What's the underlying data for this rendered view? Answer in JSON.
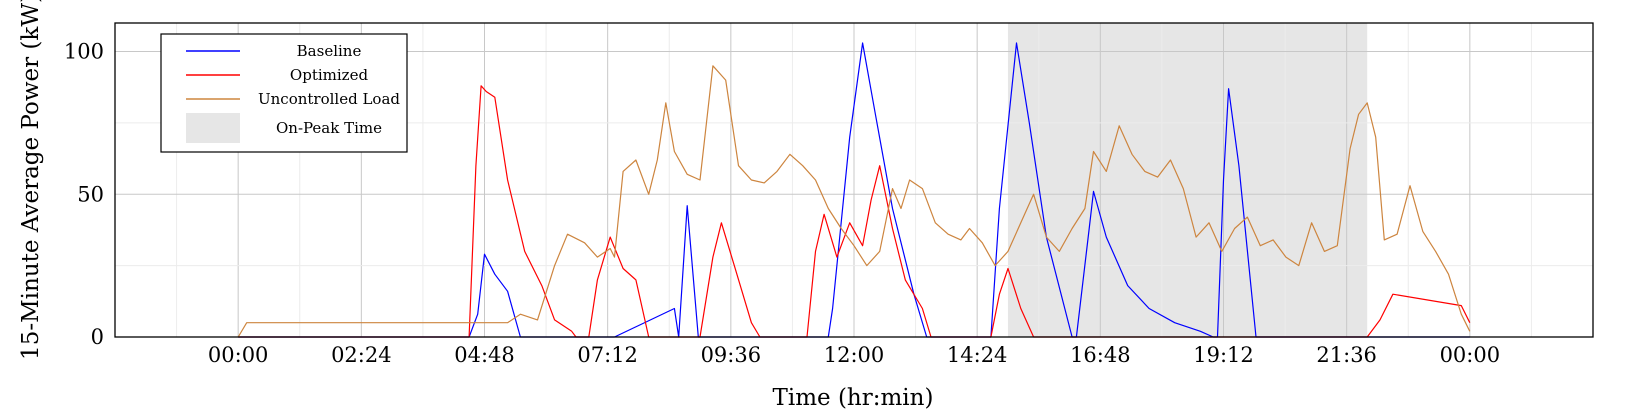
{
  "chart_data": {
    "type": "line",
    "xlabel": "Time (hr:min)",
    "ylabel": "15-Minute Average Power (kW)",
    "x_unit": "hh:mm",
    "xlim": [
      "21:36",
      "02:24"
    ],
    "ylim": [
      0,
      110
    ],
    "x_ticks": [
      "00:00",
      "02:24",
      "04:48",
      "07:12",
      "09:36",
      "12:00",
      "14:24",
      "16:48",
      "19:12",
      "21:36",
      "00:00"
    ],
    "y_ticks": [
      "0",
      "50",
      "100"
    ],
    "grid": true,
    "legend_position": "top-left",
    "on_peak_window": {
      "start": "15:00",
      "end": "22:00",
      "label": "On-Peak Time",
      "color": "#e6e6e6"
    },
    "series": [
      {
        "name": "Baseline",
        "color": "#0000ff",
        "points": [
          [
            "00:00",
            0
          ],
          [
            "04:30",
            0
          ],
          [
            "04:40",
            8
          ],
          [
            "04:48",
            29
          ],
          [
            "05:00",
            22
          ],
          [
            "05:15",
            16
          ],
          [
            "05:30",
            0
          ],
          [
            "07:20",
            0
          ],
          [
            "09:36",
            0
          ],
          [
            "09:00",
            0
          ],
          [
            "08:35",
            0
          ],
          [
            "08:30",
            10
          ],
          [
            "08:45",
            46
          ],
          [
            "08:58",
            0
          ],
          [
            "10:00",
            0
          ],
          [
            "11:30",
            0
          ],
          [
            "11:35",
            10
          ],
          [
            "11:55",
            70
          ],
          [
            "12:10",
            103
          ],
          [
            "12:25",
            78
          ],
          [
            "12:45",
            45
          ],
          [
            "13:10",
            15
          ],
          [
            "13:25",
            0
          ],
          [
            "14:40",
            0
          ],
          [
            "14:50",
            45
          ],
          [
            "15:10",
            103
          ],
          [
            "15:25",
            75
          ],
          [
            "15:45",
            35
          ],
          [
            "16:15",
            0
          ],
          [
            "16:20",
            0
          ],
          [
            "16:35",
            38
          ],
          [
            "16:40",
            51
          ],
          [
            "16:55",
            35
          ],
          [
            "17:20",
            18
          ],
          [
            "17:45",
            10
          ],
          [
            "18:15",
            5
          ],
          [
            "18:45",
            2
          ],
          [
            "19:00",
            0
          ],
          [
            "19:05",
            0
          ],
          [
            "19:12",
            55
          ],
          [
            "19:18",
            87
          ],
          [
            "19:30",
            60
          ],
          [
            "19:50",
            0
          ],
          [
            "24:00",
            0
          ]
        ]
      },
      {
        "name": "Optimized",
        "color": "#ff0000",
        "points": [
          [
            "00:00",
            0
          ],
          [
            "04:30",
            0
          ],
          [
            "04:38",
            60
          ],
          [
            "04:44",
            88
          ],
          [
            "04:50",
            86
          ],
          [
            "05:00",
            84
          ],
          [
            "05:15",
            55
          ],
          [
            "05:35",
            30
          ],
          [
            "05:55",
            18
          ],
          [
            "06:10",
            6
          ],
          [
            "06:30",
            2
          ],
          [
            "06:35",
            0
          ],
          [
            "06:50",
            0
          ],
          [
            "07:00",
            20
          ],
          [
            "07:15",
            35
          ],
          [
            "07:30",
            24
          ],
          [
            "07:45",
            20
          ],
          [
            "08:00",
            0
          ],
          [
            "09:00",
            0
          ],
          [
            "09:15",
            28
          ],
          [
            "09:25",
            40
          ],
          [
            "09:40",
            25
          ],
          [
            "10:00",
            5
          ],
          [
            "10:10",
            0
          ],
          [
            "11:05",
            0
          ],
          [
            "11:15",
            30
          ],
          [
            "11:25",
            43
          ],
          [
            "11:40",
            28
          ],
          [
            "11:55",
            40
          ],
          [
            "12:10",
            32
          ],
          [
            "12:20",
            48
          ],
          [
            "12:30",
            60
          ],
          [
            "12:45",
            38
          ],
          [
            "13:00",
            20
          ],
          [
            "13:20",
            10
          ],
          [
            "13:30",
            0
          ],
          [
            "14:40",
            0
          ],
          [
            "14:50",
            15
          ],
          [
            "15:00",
            24
          ],
          [
            "15:15",
            10
          ],
          [
            "15:30",
            0
          ],
          [
            "22:00",
            0
          ],
          [
            "22:15",
            6
          ],
          [
            "22:30",
            15
          ],
          [
            "23:50",
            11
          ],
          [
            "24:00",
            5
          ]
        ]
      },
      {
        "name": "Uncontrolled Load",
        "color": "#cd853f",
        "points": [
          [
            "00:00",
            0
          ],
          [
            "00:10",
            5
          ],
          [
            "02:00",
            5
          ],
          [
            "04:45",
            5
          ],
          [
            "05:15",
            5
          ],
          [
            "05:30",
            8
          ],
          [
            "05:50",
            6
          ],
          [
            "06:10",
            25
          ],
          [
            "06:25",
            36
          ],
          [
            "06:45",
            33
          ],
          [
            "07:00",
            28
          ],
          [
            "07:15",
            31
          ],
          [
            "07:20",
            28
          ],
          [
            "07:30",
            58
          ],
          [
            "07:45",
            62
          ],
          [
            "08:00",
            50
          ],
          [
            "08:10",
            62
          ],
          [
            "08:20",
            82
          ],
          [
            "08:30",
            65
          ],
          [
            "08:45",
            57
          ],
          [
            "09:00",
            55
          ],
          [
            "09:15",
            95
          ],
          [
            "09:30",
            90
          ],
          [
            "09:45",
            60
          ],
          [
            "10:00",
            55
          ],
          [
            "10:15",
            54
          ],
          [
            "10:30",
            58
          ],
          [
            "10:45",
            64
          ],
          [
            "11:00",
            60
          ],
          [
            "11:15",
            55
          ],
          [
            "11:30",
            45
          ],
          [
            "11:45",
            38
          ],
          [
            "12:00",
            32
          ],
          [
            "12:15",
            25
          ],
          [
            "12:30",
            30
          ],
          [
            "12:45",
            52
          ],
          [
            "12:55",
            45
          ],
          [
            "13:05",
            55
          ],
          [
            "13:20",
            52
          ],
          [
            "13:35",
            40
          ],
          [
            "13:50",
            36
          ],
          [
            "14:05",
            34
          ],
          [
            "14:15",
            38
          ],
          [
            "14:30",
            33
          ],
          [
            "14:45",
            25
          ],
          [
            "15:00",
            30
          ],
          [
            "15:15",
            40
          ],
          [
            "15:30",
            50
          ],
          [
            "15:45",
            35
          ],
          [
            "16:00",
            30
          ],
          [
            "16:15",
            38
          ],
          [
            "16:30",
            45
          ],
          [
            "16:40",
            65
          ],
          [
            "16:55",
            58
          ],
          [
            "17:10",
            74
          ],
          [
            "17:25",
            64
          ],
          [
            "17:40",
            58
          ],
          [
            "17:55",
            56
          ],
          [
            "18:10",
            62
          ],
          [
            "18:25",
            52
          ],
          [
            "18:40",
            35
          ],
          [
            "18:55",
            40
          ],
          [
            "19:10",
            30
          ],
          [
            "19:25",
            38
          ],
          [
            "19:40",
            42
          ],
          [
            "19:55",
            32
          ],
          [
            "20:10",
            34
          ],
          [
            "20:25",
            28
          ],
          [
            "20:40",
            25
          ],
          [
            "20:55",
            40
          ],
          [
            "21:10",
            30
          ],
          [
            "21:25",
            32
          ],
          [
            "21:40",
            66
          ],
          [
            "21:50",
            78
          ],
          [
            "22:00",
            82
          ],
          [
            "22:10",
            70
          ],
          [
            "22:20",
            34
          ],
          [
            "22:35",
            36
          ],
          [
            "22:50",
            53
          ],
          [
            "23:05",
            37
          ],
          [
            "23:20",
            30
          ],
          [
            "23:35",
            22
          ],
          [
            "23:50",
            8
          ],
          [
            "24:00",
            2
          ]
        ]
      }
    ]
  }
}
